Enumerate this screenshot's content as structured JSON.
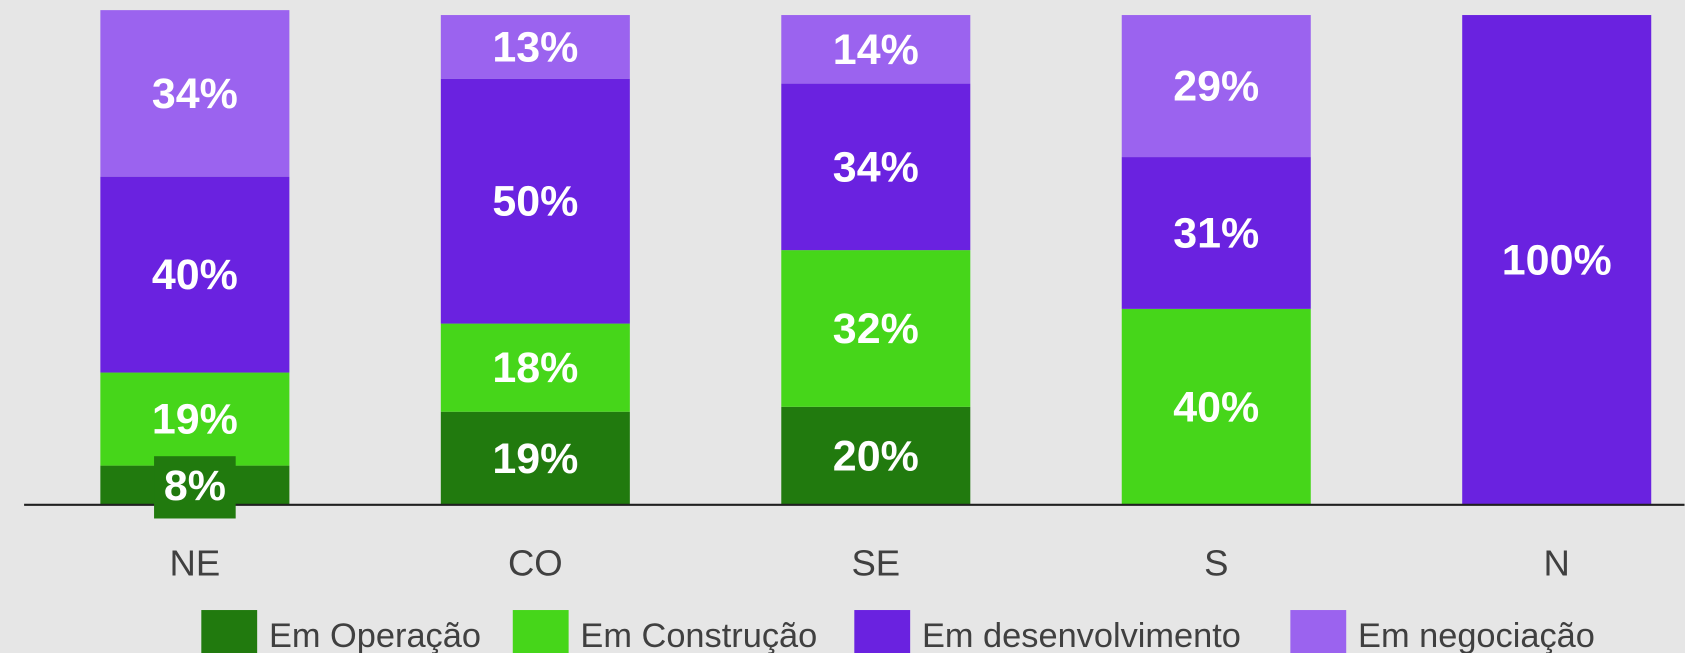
{
  "chart_data": {
    "type": "stacked_bar",
    "categories": [
      "NE",
      "CO",
      "SE",
      "S",
      "N"
    ],
    "series": [
      {
        "name": "Em Operação",
        "color": "#217a0e",
        "values": [
          8,
          19,
          20,
          null,
          null
        ],
        "value_labels": [
          "8%",
          "19%",
          "20%",
          null,
          null
        ]
      },
      {
        "name": "Em Construção",
        "color": "#46d61a",
        "values": [
          19,
          18,
          32,
          40,
          null
        ],
        "value_labels": [
          "19%",
          "18%",
          "32%",
          "40%",
          null
        ]
      },
      {
        "name": "Em desenvolvimento",
        "color": "#6a22e0",
        "values": [
          40,
          50,
          34,
          31,
          100
        ],
        "value_labels": [
          "40%",
          "50%",
          "34%",
          "31%",
          "100%"
        ]
      },
      {
        "name": "Em negociação",
        "color": "#9b63ef",
        "values": [
          34,
          13,
          14,
          29,
          null
        ],
        "value_labels": [
          "34%",
          "13%",
          "14%",
          "29%",
          null
        ]
      }
    ],
    "legend": "bottom"
  }
}
